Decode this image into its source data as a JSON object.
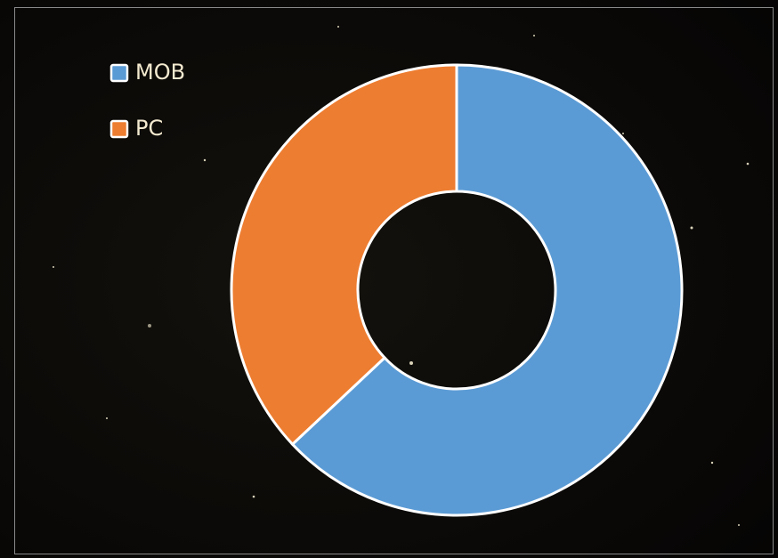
{
  "chart_data": {
    "type": "doughnut",
    "categories": [
      "MOB",
      "PC"
    ],
    "values": [
      63,
      37
    ],
    "colors": [
      "#5b9bd5",
      "#ed7d31"
    ],
    "legend": "top-left"
  }
}
